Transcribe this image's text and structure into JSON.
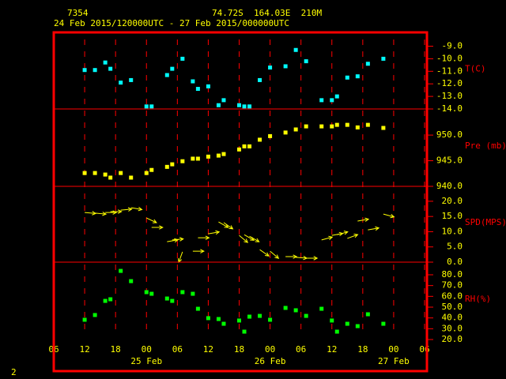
{
  "chart_data": {
    "station": "7354",
    "location": "74.72S  164.03E  210M",
    "period": "24 Feb 2015/120000UTC - 27 Feb 2015/000000UTC",
    "page_label": "2",
    "frame_color": "#ff0000",
    "xlim": [
      0,
      72
    ],
    "xticks": [
      {
        "value": 0,
        "label": "06"
      },
      {
        "value": 6,
        "label": "12"
      },
      {
        "value": 12,
        "label": "18"
      },
      {
        "value": 18,
        "label": "00"
      },
      {
        "value": 24,
        "label": "06"
      },
      {
        "value": 30,
        "label": "12"
      },
      {
        "value": 36,
        "label": "18"
      },
      {
        "value": 42,
        "label": "00"
      },
      {
        "value": 48,
        "label": "06"
      },
      {
        "value": 54,
        "label": "12"
      },
      {
        "value": 60,
        "label": "18"
      },
      {
        "value": 66,
        "label": "00"
      },
      {
        "value": 72,
        "label": "06"
      }
    ],
    "date_labels": [
      {
        "value": 18,
        "label": "25 Feb"
      },
      {
        "value": 42,
        "label": "26 Feb"
      },
      {
        "value": 66,
        "label": "27 Feb"
      }
    ],
    "x": [
      6,
      8,
      10,
      11,
      13,
      15,
      18,
      19,
      22,
      23,
      25,
      27,
      28,
      30,
      32,
      33,
      36,
      37,
      38,
      40,
      42,
      45,
      47,
      49,
      52,
      54,
      55,
      57,
      59,
      61,
      64
    ],
    "panels": [
      {
        "type": "scatter",
        "label": "T(C)",
        "color": "#00ffff",
        "ylim": [
          -14,
          -7.9
        ],
        "yticks": [
          {
            "value": -9,
            "label": "-9.0"
          },
          {
            "value": -10,
            "label": "-10.0"
          },
          {
            "value": -11,
            "label": "-11.0"
          },
          {
            "value": -12,
            "label": "-12.0"
          },
          {
            "value": -13,
            "label": "-13.0"
          },
          {
            "value": -14,
            "label": "-14.0"
          }
        ],
        "values": [
          -10.9,
          -10.9,
          -10.3,
          -10.8,
          -11.9,
          -11.7,
          -13.8,
          -13.8,
          -11.3,
          -10.8,
          -10.0,
          -11.8,
          -12.4,
          -12.2,
          -13.7,
          -13.3,
          -13.7,
          -13.8,
          -13.8,
          -11.7,
          -10.7,
          -10.6,
          -9.3,
          -10.2,
          -13.3,
          -13.3,
          -13.0,
          -11.5,
          -11.4,
          -10.4,
          -10.0
        ]
      },
      {
        "type": "scatter",
        "label": "Pre (mb)",
        "color": "#ffff00",
        "ylim": [
          940,
          955.1
        ],
        "yticks": [
          {
            "value": 950,
            "label": "950.0"
          },
          {
            "value": 945,
            "label": "945.0"
          },
          {
            "value": 940,
            "label": "940.0"
          }
        ],
        "values": [
          942.6,
          942.6,
          942.3,
          941.7,
          942.6,
          941.7,
          942.6,
          943.2,
          943.8,
          944.3,
          944.9,
          945.4,
          945.4,
          945.8,
          946.0,
          946.3,
          947.2,
          947.8,
          947.8,
          949.1,
          949.8,
          950.5,
          951.1,
          951.7,
          951.7,
          951.7,
          952.0,
          952.0,
          951.5,
          952.0,
          951.4
        ]
      },
      {
        "type": "vector",
        "label": "SPD(MPS)",
        "color": "#ffff00",
        "ylim": [
          0,
          24.9
        ],
        "yticks": [
          {
            "value": 0,
            "label": "0.0"
          },
          {
            "value": 5,
            "label": "5.0"
          },
          {
            "value": 10,
            "label": "10.0"
          },
          {
            "value": 15,
            "label": "15.0"
          },
          {
            "value": 20,
            "label": "20.0"
          }
        ],
        "values": [
          16.3,
          16.1,
          16.3,
          16.6,
          17.1,
          17.9,
          14.5,
          11.4,
          6.7,
          7.3,
          3.4,
          3.6,
          8.0,
          9.3,
          13.2,
          13.0,
          8.8,
          9.0,
          8.5,
          4.1,
          3.6,
          1.8,
          1.6,
          1.3,
          7.3,
          8.8,
          9.0,
          7.8,
          13.5,
          10.6,
          15.8
        ],
        "directions": [
          5,
          5,
          0,
          0,
          -5,
          10,
          25,
          0,
          -10,
          -5,
          110,
          0,
          0,
          -10,
          30,
          35,
          40,
          30,
          30,
          35,
          40,
          0,
          5,
          0,
          -15,
          -10,
          -15,
          -20,
          -10,
          -10,
          15
        ]
      },
      {
        "type": "scatter",
        "label": "RH(%)",
        "color": "#00ff00",
        "ylim": [
          20,
          91.7
        ],
        "yticks": [
          {
            "value": 20,
            "label": "20.0"
          },
          {
            "value": 30,
            "label": "30.0"
          },
          {
            "value": 40,
            "label": "40.0"
          },
          {
            "value": 50,
            "label": "50.0"
          },
          {
            "value": 60,
            "label": "60.0"
          },
          {
            "value": 70,
            "label": "70.0"
          },
          {
            "value": 80,
            "label": "80.0"
          }
        ],
        "values": [
          38.3,
          42.7,
          55.8,
          57.3,
          83.6,
          74.1,
          63.9,
          62.4,
          58.0,
          55.8,
          63.9,
          62.4,
          48.5,
          39.8,
          39.0,
          34.6,
          37.6,
          27.3,
          41.2,
          41.9,
          38.3,
          49.3,
          47.1,
          41.9,
          48.5,
          37.6,
          27.3,
          34.6,
          32.4,
          43.4,
          34.6
        ]
      }
    ]
  }
}
